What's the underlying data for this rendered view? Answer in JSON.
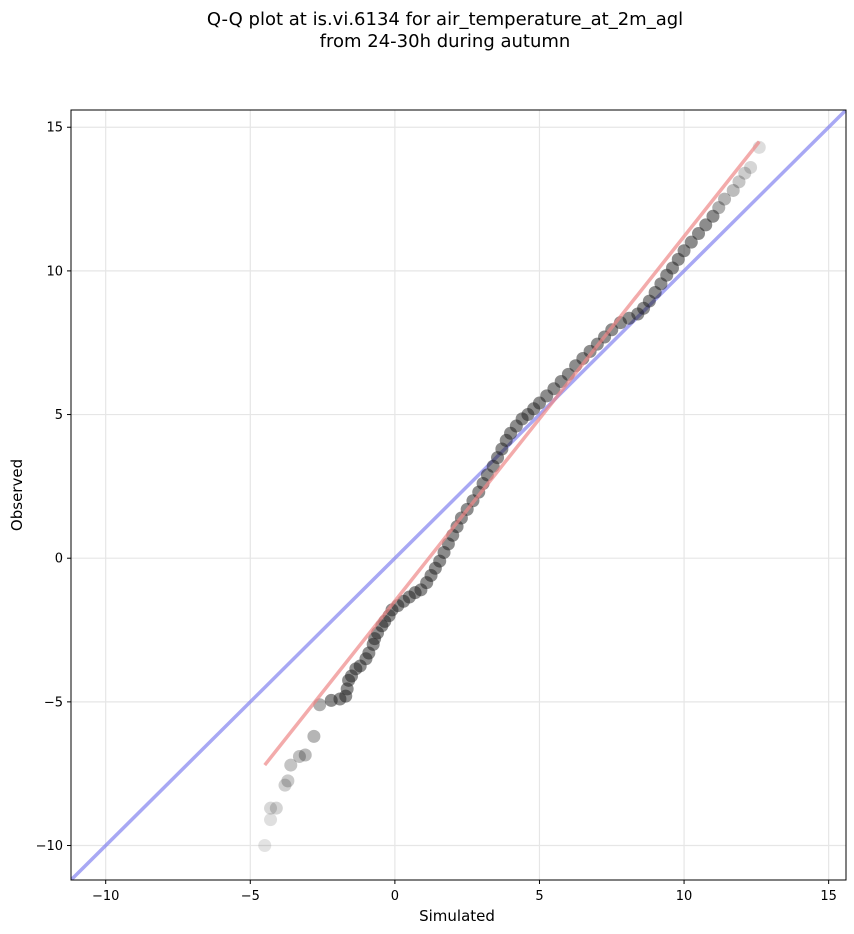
{
  "chart_data": {
    "type": "scatter",
    "title": "Q-Q plot at is.vi.6134 for air_temperature_at_2m_agl",
    "subtitle": "from 24-30h during autumn",
    "xlabel": "Simulated",
    "ylabel": "Observed",
    "xlim": [
      -11.2,
      15.6
    ],
    "ylim": [
      -11.2,
      15.6
    ],
    "xticks": [
      -10,
      -5,
      0,
      5,
      10,
      15
    ],
    "yticks": [
      -10,
      -5,
      0,
      5,
      10,
      15
    ],
    "grid": true,
    "identity_line": {
      "from": [
        -11.2,
        -11.2
      ],
      "to": [
        15.6,
        15.6
      ],
      "color": "#7a7aee"
    },
    "fit_line": {
      "from": [
        -4.5,
        -7.2
      ],
      "to": [
        12.6,
        14.5
      ],
      "color": "#ee8888"
    },
    "points": [
      [
        -4.5,
        -10.0
      ],
      [
        -4.3,
        -9.1
      ],
      [
        -4.3,
        -8.7
      ],
      [
        -4.1,
        -8.7
      ],
      [
        -3.8,
        -7.9
      ],
      [
        -3.7,
        -7.75
      ],
      [
        -3.6,
        -7.2
      ],
      [
        -3.3,
        -6.9
      ],
      [
        -3.1,
        -6.85
      ],
      [
        -2.8,
        -6.2
      ],
      [
        -2.6,
        -5.1
      ],
      [
        -2.2,
        -4.95
      ],
      [
        -1.9,
        -4.9
      ],
      [
        -1.7,
        -4.8
      ],
      [
        -1.65,
        -4.55
      ],
      [
        -1.6,
        -4.25
      ],
      [
        -1.5,
        -4.1
      ],
      [
        -1.35,
        -3.85
      ],
      [
        -1.2,
        -3.75
      ],
      [
        -1.0,
        -3.5
      ],
      [
        -0.9,
        -3.3
      ],
      [
        -0.75,
        -3.0
      ],
      [
        -0.7,
        -2.8
      ],
      [
        -0.6,
        -2.6
      ],
      [
        -0.45,
        -2.35
      ],
      [
        -0.35,
        -2.2
      ],
      [
        -0.2,
        -2.0
      ],
      [
        -0.1,
        -1.8
      ],
      [
        0.1,
        -1.65
      ],
      [
        0.3,
        -1.5
      ],
      [
        0.5,
        -1.35
      ],
      [
        0.7,
        -1.2
      ],
      [
        0.9,
        -1.1
      ],
      [
        1.1,
        -0.85
      ],
      [
        1.25,
        -0.6
      ],
      [
        1.4,
        -0.35
      ],
      [
        1.55,
        -0.1
      ],
      [
        1.7,
        0.2
      ],
      [
        1.85,
        0.5
      ],
      [
        2.0,
        0.8
      ],
      [
        2.15,
        1.1
      ],
      [
        2.3,
        1.4
      ],
      [
        2.5,
        1.7
      ],
      [
        2.7,
        2.0
      ],
      [
        2.9,
        2.3
      ],
      [
        3.05,
        2.6
      ],
      [
        3.2,
        2.9
      ],
      [
        3.4,
        3.2
      ],
      [
        3.55,
        3.5
      ],
      [
        3.7,
        3.8
      ],
      [
        3.85,
        4.1
      ],
      [
        4.0,
        4.35
      ],
      [
        4.2,
        4.6
      ],
      [
        4.4,
        4.85
      ],
      [
        4.6,
        5.0
      ],
      [
        4.8,
        5.2
      ],
      [
        5.0,
        5.4
      ],
      [
        5.25,
        5.65
      ],
      [
        5.5,
        5.9
      ],
      [
        5.75,
        6.15
      ],
      [
        6.0,
        6.4
      ],
      [
        6.25,
        6.7
      ],
      [
        6.5,
        6.95
      ],
      [
        6.75,
        7.2
      ],
      [
        7.0,
        7.45
      ],
      [
        7.25,
        7.7
      ],
      [
        7.5,
        7.95
      ],
      [
        7.8,
        8.2
      ],
      [
        8.1,
        8.35
      ],
      [
        8.4,
        8.5
      ],
      [
        8.6,
        8.7
      ],
      [
        8.8,
        8.95
      ],
      [
        9.0,
        9.25
      ],
      [
        9.2,
        9.55
      ],
      [
        9.4,
        9.85
      ],
      [
        9.6,
        10.1
      ],
      [
        9.8,
        10.4
      ],
      [
        10.0,
        10.7
      ],
      [
        10.25,
        11.0
      ],
      [
        10.5,
        11.3
      ],
      [
        10.75,
        11.6
      ],
      [
        11.0,
        11.9
      ],
      [
        11.2,
        12.2
      ],
      [
        11.4,
        12.5
      ],
      [
        11.7,
        12.8
      ],
      [
        11.9,
        13.1
      ],
      [
        12.1,
        13.4
      ],
      [
        12.3,
        13.6
      ],
      [
        12.6,
        14.3
      ]
    ]
  }
}
